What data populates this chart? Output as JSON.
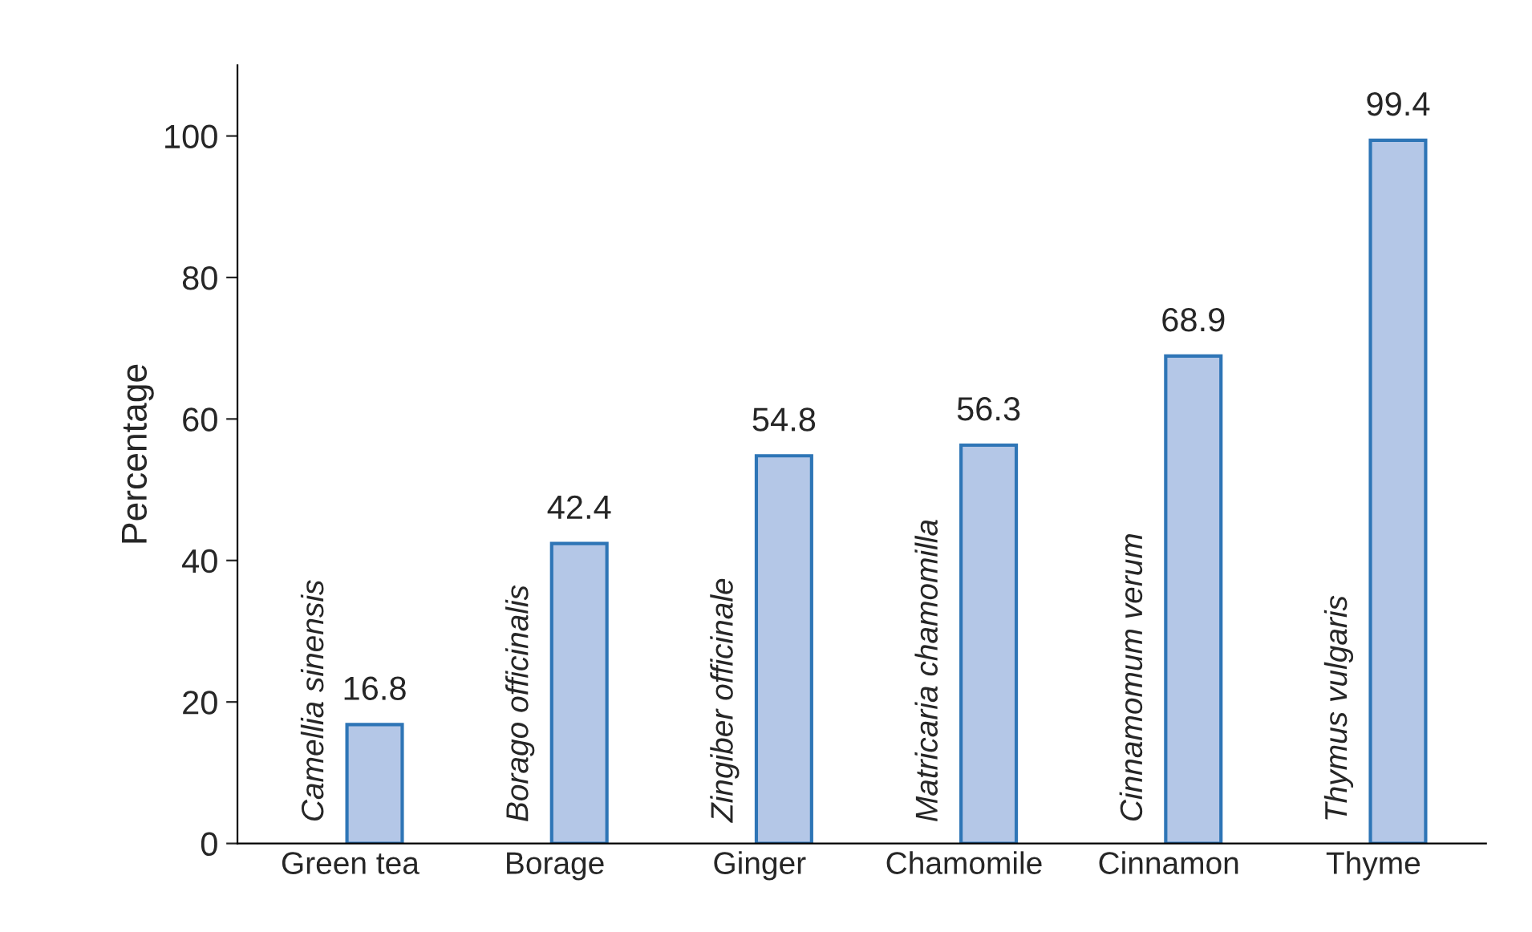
{
  "chart_data": {
    "type": "bar",
    "ylabel": "Percentage",
    "categories": [
      "Green tea",
      "Borage",
      "Ginger",
      "Chamomile",
      "Cinnamon",
      "Thyme"
    ],
    "values": [
      16.8,
      42.4,
      54.8,
      56.3,
      68.9,
      99.4
    ],
    "color": "#b4c7e7",
    "data_labels": true,
    "ylim": [
      0,
      110
    ],
    "yticks": [
      0,
      20,
      40,
      60,
      80,
      100
    ],
    "grid": false,
    "legend": false,
    "annotations": [
      {
        "text": "Camellia sinensis",
        "x": "Green tea",
        "y": 0
      },
      {
        "text": "Borago officinalis",
        "x": "Borage",
        "y": 0
      },
      {
        "text": "Zingiber officinale",
        "x": "Ginger",
        "y": 0
      },
      {
        "text": "Matricaria chamomilla",
        "x": "Chamomile",
        "y": 0
      },
      {
        "text": "Cinnamomum verum",
        "x": "Cinnamon",
        "y": 0
      },
      {
        "text": "Thymus vulgaris",
        "x": "Thyme",
        "y": 0
      }
    ]
  }
}
